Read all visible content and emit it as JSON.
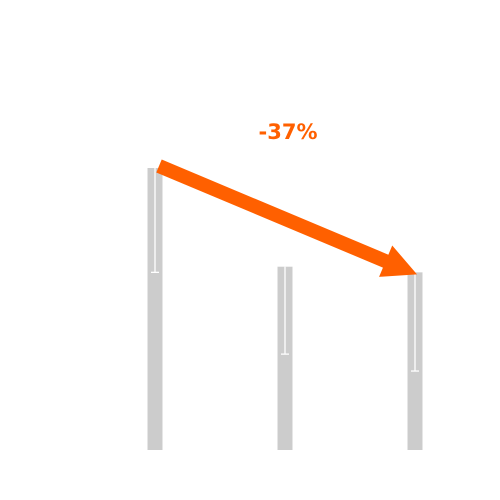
{
  "chart_data": {
    "type": "bar",
    "categories": [
      "",
      "",
      ""
    ],
    "values": [
      100,
      65,
      63
    ],
    "error_low": [
      63,
      34,
      28
    ],
    "ylim": [
      0,
      100
    ],
    "grid": false,
    "legend": "none",
    "annotation": {
      "text": "-37%",
      "from_index": 0,
      "to_index": 2
    }
  },
  "colors": {
    "bar": "#cccccc",
    "error_bar": "#ffffff",
    "accent": "#ff6000",
    "background": "#ffffff"
  }
}
